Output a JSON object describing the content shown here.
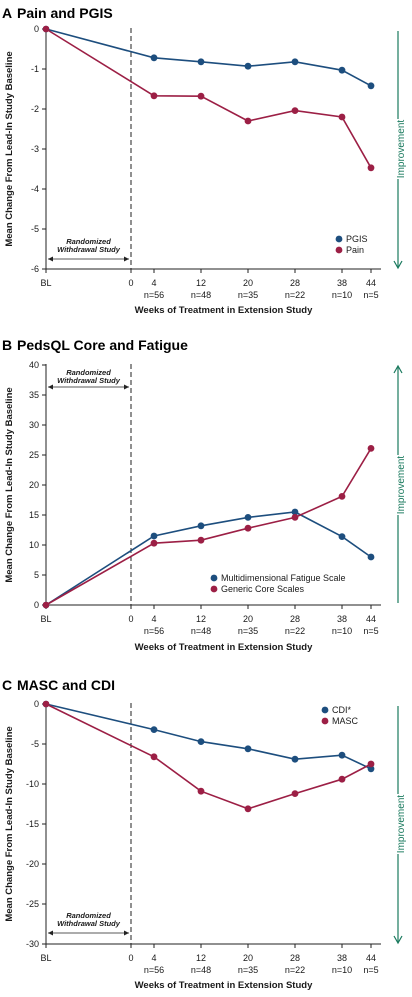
{
  "colors": {
    "series1": "#1d4e7e",
    "series2": "#9c1f45",
    "improvement": "#1a7a5e",
    "axis": "#222222"
  },
  "common": {
    "ylabel": "Mean Change From Lead-In Study Baseline",
    "xlabel": "Weeks of Treatment in Extension Study",
    "x_ticks": [
      "BL",
      "0",
      "4",
      "12",
      "20",
      "28",
      "38",
      "44"
    ],
    "n_labels": [
      "n=56",
      "n=48",
      "n=35",
      "n=22",
      "n=10",
      "n=5"
    ],
    "randomized_line1": "Randomized",
    "randomized_line2": "Withdrawal Study",
    "improvement": "Improvement"
  },
  "chart_data": [
    {
      "type": "line",
      "letter": "A",
      "title": "Pain and PGIS",
      "x": [
        "BL",
        "4",
        "12",
        "20",
        "28",
        "38",
        "44"
      ],
      "ylim": [
        -6,
        0
      ],
      "yticks": [
        0,
        -1,
        -2,
        -3,
        -4,
        -5,
        -6
      ],
      "legend_position": "bottom-right",
      "improvement_direction": "down",
      "series": [
        {
          "name": "PGIS",
          "values": [
            0,
            -0.72,
            -0.82,
            -0.93,
            -0.82,
            -1.03,
            -1.42
          ]
        },
        {
          "name": "Pain",
          "values": [
            0,
            -1.67,
            -1.68,
            -2.3,
            -2.04,
            -2.2,
            -3.47
          ]
        }
      ]
    },
    {
      "type": "line",
      "letter": "B",
      "title": "PedsQL Core and Fatigue",
      "x": [
        "BL",
        "4",
        "12",
        "20",
        "28",
        "38",
        "44"
      ],
      "ylim": [
        0,
        40
      ],
      "yticks": [
        40,
        35,
        30,
        25,
        20,
        15,
        10,
        5,
        0
      ],
      "legend_position": "bottom-right",
      "improvement_direction": "up",
      "series": [
        {
          "name": "Multidimensional Fatigue Scale",
          "values": [
            0,
            11.5,
            13.2,
            14.6,
            15.5,
            11.4,
            8.0
          ]
        },
        {
          "name": "Generic Core Scales",
          "values": [
            0,
            10.3,
            10.8,
            12.8,
            14.6,
            18.1,
            26.1
          ]
        }
      ]
    },
    {
      "type": "line",
      "letter": "C",
      "title": "MASC and CDI",
      "x": [
        "BL",
        "4",
        "12",
        "20",
        "28",
        "38",
        "44"
      ],
      "ylim": [
        -30,
        0
      ],
      "yticks": [
        0,
        -5,
        -10,
        -15,
        -20,
        -25,
        -30
      ],
      "legend_position": "top-right",
      "improvement_direction": "down",
      "series": [
        {
          "name": "CDI*",
          "values": [
            0,
            -3.2,
            -4.7,
            -5.6,
            -6.9,
            -6.4,
            -8.1
          ]
        },
        {
          "name": "MASC",
          "values": [
            0,
            -6.6,
            -10.9,
            -13.1,
            -11.2,
            -9.4,
            -7.5
          ]
        }
      ]
    }
  ]
}
